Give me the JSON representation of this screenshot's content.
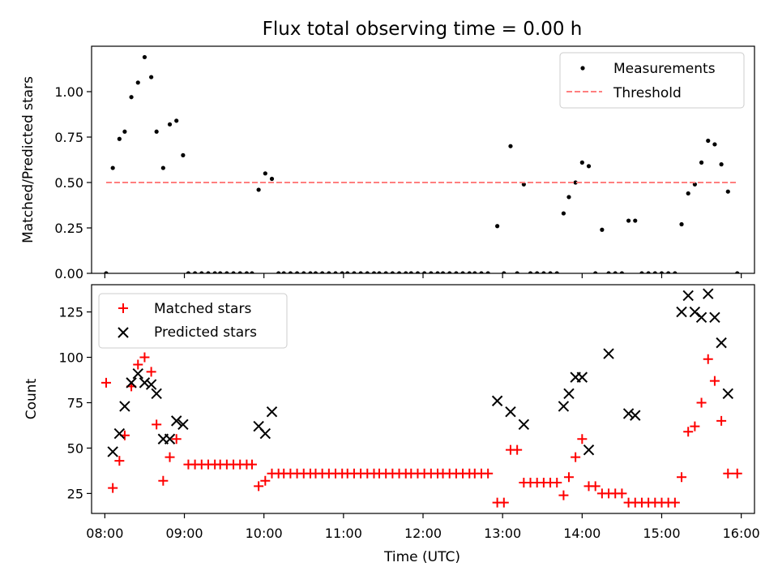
{
  "title": "Flux total observing time = 0.00 h",
  "chart_data": [
    {
      "type": "scatter",
      "ylabel": "Matched/Predicted stars",
      "xlim": [
        "07:50",
        "16:10"
      ],
      "ylim": [
        0,
        1.25
      ],
      "yticks": [
        0.0,
        0.25,
        0.5,
        0.75,
        1.0
      ],
      "ytick_labels": [
        "0.00",
        "0.25",
        "0.50",
        "0.75",
        "1.00"
      ],
      "legend_position": "upper right",
      "legend": [
        {
          "label": "Measurements",
          "marker": "dot",
          "color": "#000000"
        },
        {
          "label": "Threshold",
          "marker": "dashed-line",
          "color": "#ff7f7f"
        }
      ],
      "series": [
        {
          "name": "Measurements",
          "marker": "dot",
          "color": "#000000",
          "points": [
            [
              "08:01",
              0.0
            ],
            [
              "08:06",
              0.58
            ],
            [
              "08:11",
              0.74
            ],
            [
              "08:15",
              0.78
            ],
            [
              "08:20",
              0.97
            ],
            [
              "08:25",
              1.05
            ],
            [
              "08:30",
              1.19
            ],
            [
              "08:35",
              1.08
            ],
            [
              "08:39",
              0.78
            ],
            [
              "08:44",
              0.58
            ],
            [
              "08:49",
              0.82
            ],
            [
              "08:54",
              0.84
            ],
            [
              "08:59",
              0.65
            ],
            [
              "09:03",
              0.0
            ],
            [
              "09:08",
              0.0
            ],
            [
              "09:13",
              0.0
            ],
            [
              "09:18",
              0.0
            ],
            [
              "09:23",
              0.0
            ],
            [
              "09:27",
              0.0
            ],
            [
              "09:32",
              0.0
            ],
            [
              "09:37",
              0.0
            ],
            [
              "09:42",
              0.0
            ],
            [
              "09:47",
              0.0
            ],
            [
              "09:51",
              0.0
            ],
            [
              "09:56",
              0.46
            ],
            [
              "10:01",
              0.55
            ],
            [
              "10:06",
              0.52
            ],
            [
              "10:11",
              0.0
            ],
            [
              "10:15",
              0.0
            ],
            [
              "10:20",
              0.0
            ],
            [
              "10:25",
              0.0
            ],
            [
              "10:30",
              0.0
            ],
            [
              "10:35",
              0.0
            ],
            [
              "10:39",
              0.0
            ],
            [
              "10:44",
              0.0
            ],
            [
              "10:49",
              0.0
            ],
            [
              "10:54",
              0.0
            ],
            [
              "10:59",
              0.0
            ],
            [
              "11:03",
              0.0
            ],
            [
              "11:08",
              0.0
            ],
            [
              "11:13",
              0.0
            ],
            [
              "11:18",
              0.0
            ],
            [
              "11:23",
              0.0
            ],
            [
              "11:27",
              0.0
            ],
            [
              "11:32",
              0.0
            ],
            [
              "11:37",
              0.0
            ],
            [
              "11:42",
              0.0
            ],
            [
              "11:47",
              0.0
            ],
            [
              "11:51",
              0.0
            ],
            [
              "11:56",
              0.0
            ],
            [
              "12:01",
              0.0
            ],
            [
              "12:06",
              0.0
            ],
            [
              "12:11",
              0.0
            ],
            [
              "12:15",
              0.0
            ],
            [
              "12:20",
              0.0
            ],
            [
              "12:25",
              0.0
            ],
            [
              "12:30",
              0.0
            ],
            [
              "12:35",
              0.0
            ],
            [
              "12:39",
              0.0
            ],
            [
              "12:44",
              0.0
            ],
            [
              "12:49",
              0.0
            ],
            [
              "12:56",
              0.26
            ],
            [
              "13:01",
              0.0
            ],
            [
              "13:06",
              0.7
            ],
            [
              "13:11",
              0.0
            ],
            [
              "13:16",
              0.49
            ],
            [
              "13:21",
              0.0
            ],
            [
              "13:26",
              0.0
            ],
            [
              "13:31",
              0.0
            ],
            [
              "13:36",
              0.0
            ],
            [
              "13:41",
              0.0
            ],
            [
              "13:46",
              0.33
            ],
            [
              "13:50",
              0.42
            ],
            [
              "13:55",
              0.5
            ],
            [
              "14:00",
              0.61
            ],
            [
              "14:05",
              0.59
            ],
            [
              "14:10",
              0.0
            ],
            [
              "14:15",
              0.24
            ],
            [
              "14:20",
              0.0
            ],
            [
              "14:25",
              0.0
            ],
            [
              "14:30",
              0.0
            ],
            [
              "14:35",
              0.29
            ],
            [
              "14:40",
              0.29
            ],
            [
              "14:45",
              0.0
            ],
            [
              "14:50",
              0.0
            ],
            [
              "14:55",
              0.0
            ],
            [
              "15:00",
              0.0
            ],
            [
              "15:05",
              0.0
            ],
            [
              "15:10",
              0.0
            ],
            [
              "15:15",
              0.27
            ],
            [
              "15:20",
              0.44
            ],
            [
              "15:25",
              0.49
            ],
            [
              "15:30",
              0.61
            ],
            [
              "15:35",
              0.73
            ],
            [
              "15:40",
              0.71
            ],
            [
              "15:45",
              0.6
            ],
            [
              "15:50",
              0.45
            ],
            [
              "15:57",
              0.0
            ]
          ]
        },
        {
          "name": "Threshold",
          "style": "dashed",
          "color": "#ff7f7f",
          "points": [
            [
              "08:01",
              0.5
            ],
            [
              "15:57",
              0.5
            ]
          ]
        }
      ]
    },
    {
      "type": "scatter",
      "xlabel": "Time (UTC)",
      "ylabel": "Count",
      "xlim": [
        "07:50",
        "16:10"
      ],
      "ylim": [
        14,
        140
      ],
      "xticks": [
        "08:00",
        "09:00",
        "10:00",
        "11:00",
        "12:00",
        "13:00",
        "14:00",
        "15:00",
        "16:00"
      ],
      "yticks": [
        25,
        50,
        75,
        100,
        125
      ],
      "ytick_labels": [
        "25",
        "50",
        "75",
        "100",
        "125"
      ],
      "legend_position": "upper left",
      "legend": [
        {
          "label": "Matched stars",
          "marker": "plus",
          "color": "#ff0000"
        },
        {
          "label": "Predicted stars",
          "marker": "x",
          "color": "#000000"
        }
      ],
      "series": [
        {
          "name": "Matched stars",
          "marker": "plus",
          "color": "#ff0000",
          "points": [
            [
              "08:01",
              86
            ],
            [
              "08:06",
              28
            ],
            [
              "08:11",
              43
            ],
            [
              "08:15",
              57
            ],
            [
              "08:20",
              84
            ],
            [
              "08:25",
              96
            ],
            [
              "08:30",
              100
            ],
            [
              "08:35",
              92
            ],
            [
              "08:39",
              63
            ],
            [
              "08:44",
              32
            ],
            [
              "08:49",
              45
            ],
            [
              "08:54",
              55
            ],
            [
              "09:03",
              41
            ],
            [
              "09:08",
              41
            ],
            [
              "09:13",
              41
            ],
            [
              "09:18",
              41
            ],
            [
              "09:23",
              41
            ],
            [
              "09:27",
              41
            ],
            [
              "09:32",
              41
            ],
            [
              "09:37",
              41
            ],
            [
              "09:42",
              41
            ],
            [
              "09:47",
              41
            ],
            [
              "09:51",
              41
            ],
            [
              "09:56",
              29
            ],
            [
              "10:01",
              32
            ],
            [
              "10:06",
              36
            ],
            [
              "10:11",
              36
            ],
            [
              "10:15",
              36
            ],
            [
              "10:20",
              36
            ],
            [
              "10:25",
              36
            ],
            [
              "10:30",
              36
            ],
            [
              "10:35",
              36
            ],
            [
              "10:39",
              36
            ],
            [
              "10:44",
              36
            ],
            [
              "10:49",
              36
            ],
            [
              "10:54",
              36
            ],
            [
              "10:59",
              36
            ],
            [
              "11:03",
              36
            ],
            [
              "11:08",
              36
            ],
            [
              "11:13",
              36
            ],
            [
              "11:18",
              36
            ],
            [
              "11:23",
              36
            ],
            [
              "11:27",
              36
            ],
            [
              "11:32",
              36
            ],
            [
              "11:37",
              36
            ],
            [
              "11:42",
              36
            ],
            [
              "11:47",
              36
            ],
            [
              "11:51",
              36
            ],
            [
              "11:56",
              36
            ],
            [
              "12:01",
              36
            ],
            [
              "12:06",
              36
            ],
            [
              "12:11",
              36
            ],
            [
              "12:15",
              36
            ],
            [
              "12:20",
              36
            ],
            [
              "12:25",
              36
            ],
            [
              "12:30",
              36
            ],
            [
              "12:35",
              36
            ],
            [
              "12:39",
              36
            ],
            [
              "12:44",
              36
            ],
            [
              "12:49",
              36
            ],
            [
              "12:56",
              20
            ],
            [
              "13:01",
              20
            ],
            [
              "13:06",
              49
            ],
            [
              "13:11",
              49
            ],
            [
              "13:16",
              31
            ],
            [
              "13:21",
              31
            ],
            [
              "13:26",
              31
            ],
            [
              "13:31",
              31
            ],
            [
              "13:36",
              31
            ],
            [
              "13:41",
              31
            ],
            [
              "13:46",
              24
            ],
            [
              "13:50",
              34
            ],
            [
              "13:55",
              45
            ],
            [
              "14:00",
              55
            ],
            [
              "14:05",
              29
            ],
            [
              "14:10",
              29
            ],
            [
              "14:15",
              25
            ],
            [
              "14:20",
              25
            ],
            [
              "14:25",
              25
            ],
            [
              "14:30",
              25
            ],
            [
              "14:35",
              20
            ],
            [
              "14:40",
              20
            ],
            [
              "14:45",
              20
            ],
            [
              "14:50",
              20
            ],
            [
              "14:55",
              20
            ],
            [
              "15:00",
              20
            ],
            [
              "15:05",
              20
            ],
            [
              "15:10",
              20
            ],
            [
              "15:15",
              34
            ],
            [
              "15:20",
              59
            ],
            [
              "15:25",
              62
            ],
            [
              "15:30",
              75
            ],
            [
              "15:35",
              99
            ],
            [
              "15:40",
              87
            ],
            [
              "15:45",
              65
            ],
            [
              "15:50",
              36
            ],
            [
              "15:57",
              36
            ]
          ]
        },
        {
          "name": "Predicted stars",
          "marker": "x",
          "color": "#000000",
          "points": [
            [
              "08:06",
              48
            ],
            [
              "08:11",
              58
            ],
            [
              "08:15",
              73
            ],
            [
              "08:20",
              86
            ],
            [
              "08:25",
              91
            ],
            [
              "08:30",
              86
            ],
            [
              "08:35",
              85
            ],
            [
              "08:39",
              80
            ],
            [
              "08:44",
              55
            ],
            [
              "08:49",
              55
            ],
            [
              "08:54",
              65
            ],
            [
              "08:59",
              63
            ],
            [
              "09:56",
              62
            ],
            [
              "10:01",
              58
            ],
            [
              "10:06",
              70
            ],
            [
              "12:56",
              76
            ],
            [
              "13:06",
              70
            ],
            [
              "13:16",
              63
            ],
            [
              "13:46",
              73
            ],
            [
              "13:50",
              80
            ],
            [
              "13:55",
              89
            ],
            [
              "14:00",
              89
            ],
            [
              "14:05",
              49
            ],
            [
              "14:20",
              102
            ],
            [
              "14:35",
              69
            ],
            [
              "14:40",
              68
            ],
            [
              "15:15",
              125
            ],
            [
              "15:20",
              134
            ],
            [
              "15:25",
              125
            ],
            [
              "15:30",
              122
            ],
            [
              "15:35",
              135
            ],
            [
              "15:40",
              122
            ],
            [
              "15:45",
              108
            ],
            [
              "15:50",
              80
            ]
          ]
        }
      ]
    }
  ]
}
